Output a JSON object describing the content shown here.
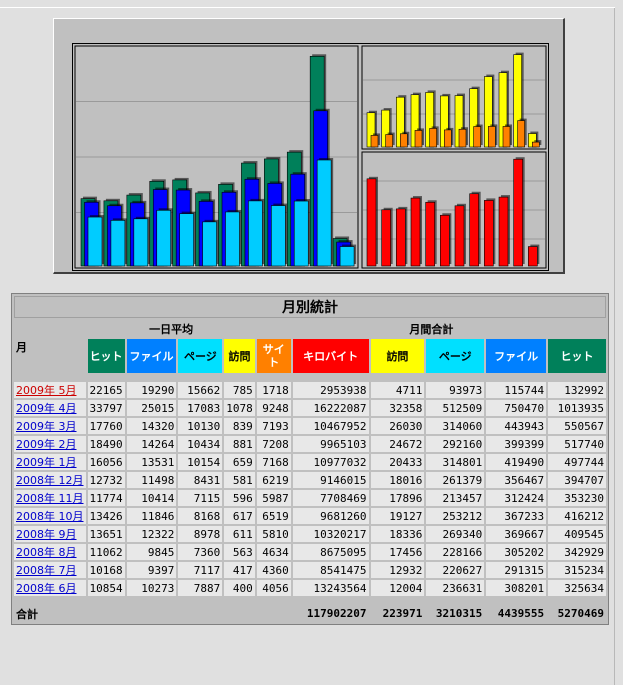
{
  "colors": {
    "hits": "#00805a",
    "files": "#0000ff",
    "pages": "#00ccff",
    "visits": "#ffff00",
    "sites": "#ff8000",
    "kbytes": "#ff0000",
    "panel": "#c0c0c0",
    "active_month": "#cc0000",
    "link": "#0000cc"
  },
  "chart_data": [
    {
      "type": "bar",
      "categories": [
        "2008年6月",
        "2008年7月",
        "2008年8月",
        "2008年9月",
        "2008年10月",
        "2008年11月",
        "2008年12月",
        "2009年1月",
        "2009年2月",
        "2009年3月",
        "2009年4月",
        "2009年5月"
      ],
      "series": [
        {
          "name": "ヒット",
          "values": [
            325634,
            315234,
            342929,
            409545,
            416212,
            353230,
            394707,
            497744,
            517740,
            550567,
            1013935,
            132992
          ]
        },
        {
          "name": "ファイル",
          "values": [
            308201,
            291315,
            305202,
            369667,
            367233,
            312424,
            356467,
            419490,
            399399,
            443943,
            750470,
            115744
          ]
        },
        {
          "name": "ページ",
          "values": [
            236631,
            220627,
            228166,
            269340,
            253212,
            213457,
            261379,
            314801,
            292160,
            314060,
            512509,
            93973
          ]
        }
      ]
    },
    {
      "type": "bar",
      "categories": [
        "2008年6月",
        "2008年7月",
        "2008年8月",
        "2008年9月",
        "2008年10月",
        "2008年11月",
        "2008年12月",
        "2009年1月",
        "2009年2月",
        "2009年3月",
        "2009年4月",
        "2009年5月"
      ],
      "series": [
        {
          "name": "訪問",
          "values": [
            12004,
            12932,
            17456,
            18336,
            19127,
            17896,
            18016,
            20433,
            24672,
            26030,
            32358,
            4711
          ]
        },
        {
          "name": "サイト",
          "values": [
            4056,
            4360,
            4634,
            5810,
            6519,
            5987,
            6219,
            7168,
            7208,
            7193,
            9248,
            1718
          ]
        }
      ]
    },
    {
      "type": "bar",
      "categories": [
        "2008年6月",
        "2008年7月",
        "2008年8月",
        "2008年9月",
        "2008年10月",
        "2008年11月",
        "2008年12月",
        "2009年1月",
        "2009年2月",
        "2009年3月",
        "2009年4月",
        "2009年5月"
      ],
      "series": [
        {
          "name": "キロバイト",
          "values": [
            13243564,
            8541475,
            8675095,
            10320217,
            9681260,
            7708469,
            9146015,
            10977032,
            9965103,
            10467952,
            16222087,
            2953938
          ]
        }
      ]
    }
  ],
  "table": {
    "title": "月別統計",
    "month_header": "月",
    "daily_avg_header": "一日平均",
    "monthly_total_header": "月間合計",
    "daily_cols": [
      {
        "label": "ヒット",
        "color": "#00805a",
        "text": "#ffffff"
      },
      {
        "label": "ファイル",
        "color": "#0080ff",
        "text": "#ffffff"
      },
      {
        "label": "ページ",
        "color": "#00e0ff",
        "text": "#000000"
      },
      {
        "label": "訪問",
        "color": "#ffff00",
        "text": "#000000"
      }
    ],
    "total_cols": [
      {
        "label": "サイト",
        "color": "#ff8000",
        "text": "#ffffff"
      },
      {
        "label": "キロバイト",
        "color": "#ff0000",
        "text": "#ffffff"
      },
      {
        "label": "訪問",
        "color": "#ffff00",
        "text": "#000000"
      },
      {
        "label": "ページ",
        "color": "#00e0ff",
        "text": "#000000"
      },
      {
        "label": "ファイル",
        "color": "#0080ff",
        "text": "#ffffff"
      },
      {
        "label": "ヒット",
        "color": "#00805a",
        "text": "#ffffff"
      }
    ],
    "rows": [
      {
        "month": "2009年 5月",
        "active": true,
        "v": [
          "22165",
          "19290",
          "15662",
          "785",
          "1718",
          "2953938",
          "4711",
          "93973",
          "115744",
          "132992"
        ]
      },
      {
        "month": "2009年 4月",
        "active": false,
        "v": [
          "33797",
          "25015",
          "17083",
          "1078",
          "9248",
          "16222087",
          "32358",
          "512509",
          "750470",
          "1013935"
        ]
      },
      {
        "month": "2009年 3月",
        "active": false,
        "v": [
          "17760",
          "14320",
          "10130",
          "839",
          "7193",
          "10467952",
          "26030",
          "314060",
          "443943",
          "550567"
        ]
      },
      {
        "month": "2009年 2月",
        "active": false,
        "v": [
          "18490",
          "14264",
          "10434",
          "881",
          "7208",
          "9965103",
          "24672",
          "292160",
          "399399",
          "517740"
        ]
      },
      {
        "month": "2009年 1月",
        "active": false,
        "v": [
          "16056",
          "13531",
          "10154",
          "659",
          "7168",
          "10977032",
          "20433",
          "314801",
          "419490",
          "497744"
        ]
      },
      {
        "month": "2008年 12月",
        "active": false,
        "v": [
          "12732",
          "11498",
          "8431",
          "581",
          "6219",
          "9146015",
          "18016",
          "261379",
          "356467",
          "394707"
        ]
      },
      {
        "month": "2008年 11月",
        "active": false,
        "v": [
          "11774",
          "10414",
          "7115",
          "596",
          "5987",
          "7708469",
          "17896",
          "213457",
          "312424",
          "353230"
        ]
      },
      {
        "month": "2008年 10月",
        "active": false,
        "v": [
          "13426",
          "11846",
          "8168",
          "617",
          "6519",
          "9681260",
          "19127",
          "253212",
          "367233",
          "416212"
        ]
      },
      {
        "month": "2008年 9月",
        "active": false,
        "v": [
          "13651",
          "12322",
          "8978",
          "611",
          "5810",
          "10320217",
          "18336",
          "269340",
          "369667",
          "409545"
        ]
      },
      {
        "month": "2008年 8月",
        "active": false,
        "v": [
          "11062",
          "9845",
          "7360",
          "563",
          "4634",
          "8675095",
          "17456",
          "228166",
          "305202",
          "342929"
        ]
      },
      {
        "month": "2008年 7月",
        "active": false,
        "v": [
          "10168",
          "9397",
          "7117",
          "417",
          "4360",
          "8541475",
          "12932",
          "220627",
          "291315",
          "315234"
        ]
      },
      {
        "month": "2008年 6月",
        "active": false,
        "v": [
          "10854",
          "10273",
          "7887",
          "400",
          "4056",
          "13243564",
          "12004",
          "236631",
          "308201",
          "325634"
        ]
      }
    ],
    "total_label": "合計",
    "totals": [
      "117902207",
      "223971",
      "3210315",
      "4439555",
      "5270469"
    ]
  }
}
